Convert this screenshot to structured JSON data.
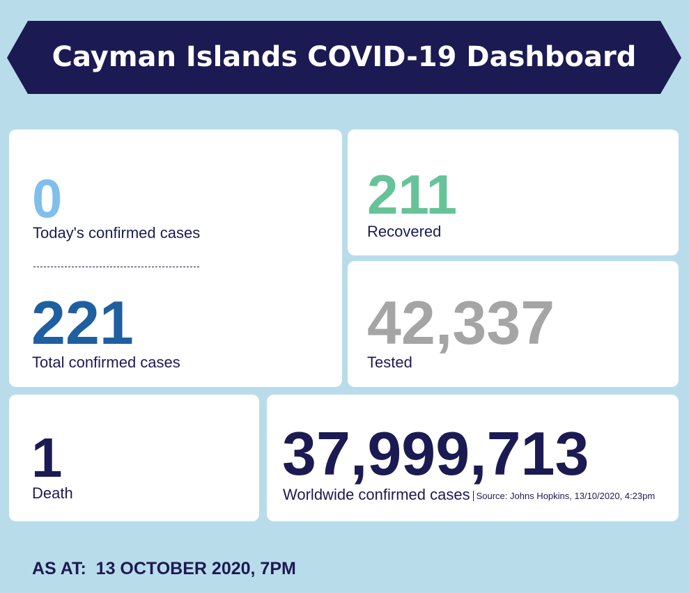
{
  "header": {
    "title": "Cayman Islands COVID-19 Dashboard"
  },
  "cards": [
    {
      "value": "0",
      "label": "Today's confirmed cases"
    },
    {
      "value": "221",
      "label": "Total confirmed cases"
    },
    {
      "value": "211",
      "label": "Recovered"
    },
    {
      "value": "42,337",
      "label": "Tested"
    },
    {
      "value": "1",
      "label": "Death"
    },
    {
      "value": "37,999,713",
      "label": "Worldwide confirmed cases",
      "note": "Source: Johns Hopkins, 13/10/2020, 4:23pm"
    }
  ],
  "footer": {
    "as_at": "AS AT:  13 OCTOBER 2020, 7PM"
  }
}
